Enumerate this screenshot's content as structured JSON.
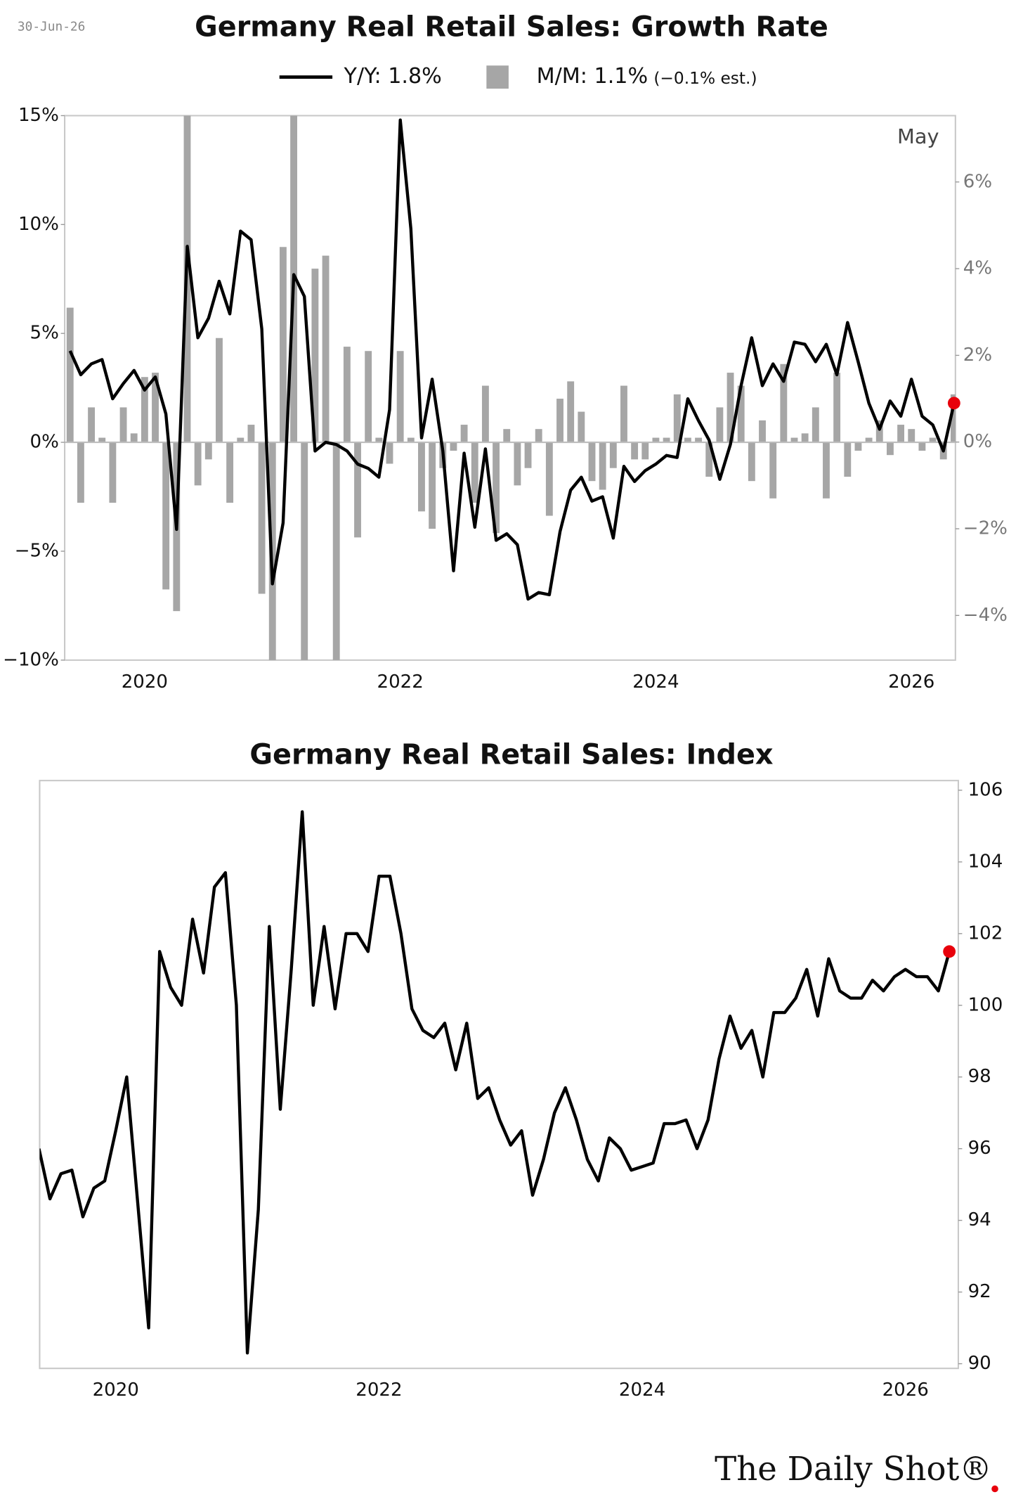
{
  "header_date": "30-Jun-26",
  "source_logo": "The Daily Shot®",
  "chart_data": [
    {
      "type": "combo",
      "title": "Germany Real Retail Sales: Growth Rate",
      "annotation": "May",
      "estimate_note": "(−0.1% est.)",
      "categories": [
        null,
        null,
        null,
        null,
        null,
        null,
        null,
        "2020",
        null,
        null,
        null,
        null,
        null,
        null,
        null,
        null,
        null,
        null,
        null,
        null,
        null,
        null,
        null,
        null,
        null,
        null,
        null,
        null,
        null,
        null,
        null,
        "2022",
        null,
        null,
        null,
        null,
        null,
        null,
        null,
        null,
        null,
        null,
        null,
        null,
        null,
        null,
        null,
        null,
        null,
        null,
        null,
        null,
        null,
        null,
        null,
        "2024",
        null,
        null,
        null,
        null,
        null,
        null,
        null,
        null,
        null,
        null,
        null,
        null,
        null,
        null,
        null,
        null,
        null,
        null,
        null,
        null,
        null,
        null,
        null,
        "2026",
        null,
        null,
        null,
        null
      ],
      "ylim": [
        -10,
        15
      ],
      "yticks": [
        {
          "value": -10,
          "label": "−10%"
        },
        {
          "value": -5,
          "label": "−5%"
        },
        {
          "value": 0,
          "label": "0%"
        },
        {
          "value": 5,
          "label": "5%"
        },
        {
          "value": 10,
          "label": "10%"
        },
        {
          "value": 15,
          "label": "15%"
        }
      ],
      "y2lim": [
        -5.03,
        7.53
      ],
      "y2ticks": [
        {
          "value": -4,
          "label": "−4%"
        },
        {
          "value": -2,
          "label": "−2%"
        },
        {
          "value": 0,
          "label": "0%"
        },
        {
          "value": 2,
          "label": "2%"
        },
        {
          "value": 4,
          "label": "4%"
        },
        {
          "value": 6,
          "label": "6%"
        }
      ],
      "grid": false,
      "last_point_color": "#e8000b",
      "series": [
        {
          "name": "M/M: 1.1%",
          "type": "bar",
          "axis": "y2",
          "color": "#a6a6a6",
          "values": [
            3.1,
            -1.4,
            0.8,
            0.1,
            -1.4,
            0.8,
            0.2,
            1.5,
            1.6,
            -3.4,
            -3.9,
            8.0,
            -1.0,
            -0.4,
            2.4,
            -1.4,
            0.1,
            0.4,
            -3.5,
            -5.5,
            4.5,
            8.0,
            -5.5,
            4.0,
            4.3,
            -5.5,
            2.2,
            -2.2,
            2.1,
            0.1,
            -0.5,
            2.1,
            0.1,
            -1.6,
            -2.0,
            -0.6,
            -0.2,
            0.4,
            -1.4,
            1.3,
            -2.1,
            0.3,
            -1.0,
            -0.6,
            0.3,
            -1.7,
            1.0,
            1.4,
            0.7,
            -0.9,
            -1.1,
            -0.6,
            1.3,
            -0.4,
            -0.4,
            0.1,
            0.1,
            1.1,
            0.1,
            0.1,
            -0.8,
            0.8,
            1.6,
            1.3,
            -0.9,
            0.5,
            -1.3,
            1.8,
            0.1,
            0.2,
            0.8,
            -1.3,
            1.6,
            -0.8,
            -0.2,
            0.1,
            0.5,
            -0.3,
            0.4,
            0.3,
            -0.2,
            0.1,
            -0.4,
            1.1
          ]
        },
        {
          "name": "Y/Y: 1.8%",
          "type": "line",
          "axis": "y",
          "color": "#000000",
          "values": [
            4.2,
            3.1,
            3.6,
            3.8,
            2.0,
            2.7,
            3.3,
            2.4,
            3.0,
            1.3,
            -4.0,
            9.0,
            4.8,
            5.7,
            7.4,
            5.9,
            9.7,
            9.3,
            5.2,
            -6.5,
            -3.7,
            7.7,
            6.7,
            -0.4,
            0.0,
            -0.1,
            -0.4,
            -1.0,
            -1.2,
            -1.6,
            1.5,
            14.8,
            9.8,
            0.2,
            2.9,
            -0.4,
            -5.9,
            -0.5,
            -3.9,
            -0.3,
            -4.5,
            -4.2,
            -4.7,
            -7.2,
            -6.9,
            -7.0,
            -4.1,
            -2.2,
            -1.6,
            -2.7,
            -2.5,
            -4.4,
            -1.1,
            -1.8,
            -1.3,
            -1.0,
            -0.6,
            -0.7,
            2.0,
            1.0,
            0.1,
            -1.7,
            -0.1,
            2.6,
            4.8,
            2.6,
            3.6,
            2.8,
            4.6,
            4.5,
            3.7,
            4.5,
            3.1,
            5.5,
            3.7,
            1.8,
            0.6,
            1.9,
            1.2,
            2.9,
            1.2,
            0.8,
            -0.4,
            1.8
          ]
        }
      ]
    },
    {
      "type": "line",
      "title": "Germany Real Retail Sales: Index",
      "categories": [
        null,
        null,
        null,
        null,
        null,
        null,
        null,
        "2020",
        null,
        null,
        null,
        null,
        null,
        null,
        null,
        null,
        null,
        null,
        null,
        null,
        null,
        null,
        null,
        null,
        null,
        null,
        null,
        null,
        null,
        null,
        null,
        "2022",
        null,
        null,
        null,
        null,
        null,
        null,
        null,
        null,
        null,
        null,
        null,
        null,
        null,
        null,
        null,
        null,
        null,
        null,
        null,
        null,
        null,
        null,
        null,
        "2024",
        null,
        null,
        null,
        null,
        null,
        null,
        null,
        null,
        null,
        null,
        null,
        null,
        null,
        null,
        null,
        null,
        null,
        null,
        null,
        null,
        null,
        null,
        null,
        "2026",
        null,
        null,
        null,
        null
      ],
      "ylim": [
        89.87,
        106.27
      ],
      "yticks": [
        90,
        92,
        94,
        96,
        98,
        100,
        102,
        104,
        106
      ],
      "yaxis_position": "right",
      "grid": false,
      "color": "#000000",
      "last_point_color": "#e8000b",
      "values": [
        96.0,
        94.6,
        95.3,
        95.4,
        94.1,
        94.9,
        95.1,
        96.5,
        98.0,
        94.5,
        91.0,
        101.5,
        100.5,
        100.0,
        102.4,
        100.9,
        103.3,
        103.7,
        100.0,
        90.3,
        94.3,
        102.2,
        97.1,
        101.0,
        105.4,
        100.0,
        102.2,
        99.9,
        102.0,
        102.0,
        101.5,
        103.6,
        103.6,
        102.0,
        99.9,
        99.3,
        99.1,
        99.5,
        98.2,
        99.5,
        97.4,
        97.7,
        96.8,
        96.1,
        96.5,
        94.7,
        95.7,
        97.0,
        97.7,
        96.8,
        95.7,
        95.1,
        96.3,
        96.0,
        95.4,
        95.5,
        95.6,
        96.7,
        96.7,
        96.8,
        96.0,
        96.8,
        98.5,
        99.7,
        98.8,
        99.3,
        98.0,
        99.8,
        99.8,
        100.2,
        101.0,
        99.7,
        101.3,
        100.4,
        100.2,
        100.2,
        100.7,
        100.4,
        100.8,
        101.0,
        100.8,
        100.8,
        100.4,
        101.5
      ]
    }
  ]
}
